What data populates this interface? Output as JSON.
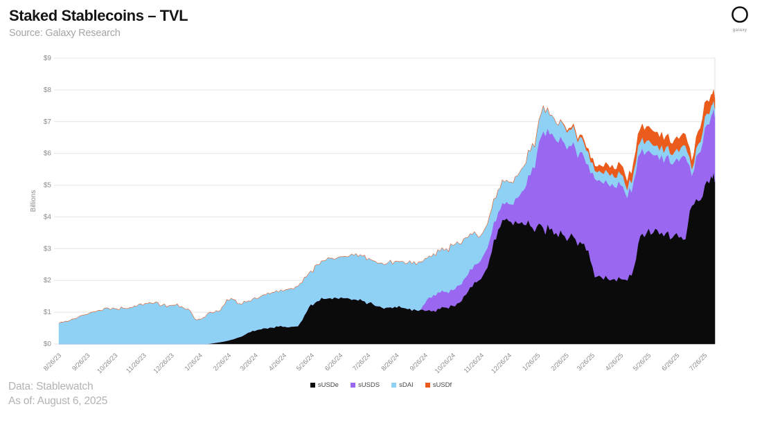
{
  "header": {
    "title": "Staked Stablecoins – TVL",
    "source": "Source: Galaxy Research",
    "logo_text": "galaxy"
  },
  "footer": {
    "data_line": "Data: Stablewatch",
    "as_of_line": "As of: August 6, 2025"
  },
  "chart_data": {
    "type": "area",
    "stacked": true,
    "title": "Staked Stablecoins – TVL",
    "xlabel": "",
    "ylabel": "Billions",
    "ylim": [
      0,
      9
    ],
    "y_tick_prefix": "$",
    "grid": true,
    "legend_position": "bottom",
    "x_unit": "days since 8/26/2023, weekly samples",
    "sample_interval_days": 7,
    "total_days": 711,
    "x_tick_labels": [
      "8/26/23",
      "9/26/23",
      "10/26/23",
      "11/26/23",
      "12/26/23",
      "1/26/24",
      "2/26/24",
      "3/26/24",
      "4/26/24",
      "5/26/24",
      "6/26/24",
      "7/26/24",
      "8/26/24",
      "9/26/24",
      "10/26/24",
      "11/26/24",
      "12/26/24",
      "1/26/25",
      "2/26/25",
      "3/26/25",
      "4/26/25",
      "5/26/25",
      "6/26/25",
      "7/26/25"
    ],
    "x_tick_days": [
      0,
      31,
      61,
      92,
      122,
      153,
      184,
      213,
      244,
      274,
      305,
      335,
      366,
      397,
      427,
      458,
      488,
      519,
      550,
      578,
      609,
      639,
      670,
      700
    ],
    "series": [
      {
        "name": "sUSDe",
        "color": "#0b0b0b",
        "values": [
          0,
          0,
          0,
          0,
          0,
          0,
          0,
          0,
          0,
          0,
          0,
          0,
          0,
          0,
          0,
          0,
          0,
          0,
          0,
          0,
          0,
          0,
          0,
          0,
          0.03,
          0.06,
          0.1,
          0.15,
          0.22,
          0.32,
          0.42,
          0.46,
          0.5,
          0.52,
          0.55,
          0.55,
          0.55,
          0.56,
          0.9,
          1.25,
          1.35,
          1.42,
          1.45,
          1.45,
          1.45,
          1.43,
          1.4,
          1.36,
          1.3,
          1.2,
          1.15,
          1.15,
          1.18,
          1.15,
          1.1,
          1.1,
          1.08,
          1.05,
          1.05,
          1.1,
          1.15,
          1.2,
          1.3,
          1.55,
          1.8,
          2.0,
          2.3,
          2.9,
          3.6,
          3.9,
          3.85,
          3.8,
          3.75,
          3.72,
          3.7,
          3.65,
          3.6,
          3.5,
          3.45,
          3.35,
          3.3,
          3.15,
          2.95,
          2.1,
          2.1,
          2.05,
          2.05,
          2.05,
          2.0,
          2.4,
          3.4,
          3.5,
          3.5,
          3.45,
          3.5,
          3.35,
          3.35,
          3.3,
          4.35,
          4.5,
          5.0,
          5.3,
          5.1
        ]
      },
      {
        "name": "sUSDS",
        "color": "#9a68f0",
        "values": [
          0,
          0,
          0,
          0,
          0,
          0,
          0,
          0,
          0,
          0,
          0,
          0,
          0,
          0,
          0,
          0,
          0,
          0,
          0,
          0,
          0,
          0,
          0,
          0,
          0,
          0,
          0,
          0,
          0,
          0,
          0,
          0,
          0,
          0,
          0,
          0,
          0,
          0,
          0,
          0,
          0,
          0,
          0,
          0,
          0,
          0,
          0,
          0,
          0,
          0,
          0,
          0,
          0,
          0,
          0,
          0,
          0,
          0.35,
          0.5,
          0.52,
          0.5,
          0.5,
          0.55,
          0.55,
          0.55,
          0.55,
          0.6,
          0.6,
          0.55,
          0.5,
          0.55,
          0.8,
          1.1,
          1.6,
          2.3,
          3.05,
          3.0,
          2.9,
          2.95,
          2.9,
          2.85,
          2.9,
          2.7,
          3.1,
          3.0,
          3.0,
          2.9,
          2.95,
          2.6,
          2.75,
          2.6,
          2.55,
          2.45,
          2.35,
          2.4,
          2.3,
          2.4,
          2.6,
          0.95,
          1.5,
          1.8,
          1.9,
          2.05
        ]
      },
      {
        "name": "sDAI",
        "color": "#8ed1f5",
        "values": [
          0.65,
          0.72,
          0.78,
          0.85,
          0.92,
          1.0,
          1.05,
          1.12,
          1.08,
          1.1,
          1.12,
          1.15,
          1.18,
          1.22,
          1.3,
          1.32,
          1.22,
          1.2,
          1.22,
          1.18,
          1.1,
          0.8,
          0.78,
          0.95,
          0.95,
          1.0,
          1.3,
          1.25,
          1.05,
          1.0,
          1.0,
          1.0,
          1.05,
          1.1,
          1.08,
          1.15,
          1.2,
          1.25,
          1.2,
          1.05,
          1.15,
          1.2,
          1.25,
          1.25,
          1.3,
          1.35,
          1.45,
          1.4,
          1.4,
          1.4,
          1.4,
          1.42,
          1.42,
          1.45,
          1.45,
          1.5,
          1.5,
          1.3,
          1.3,
          1.3,
          1.35,
          1.4,
          1.3,
          1.25,
          1.1,
          0.8,
          0.75,
          0.75,
          0.7,
          0.7,
          0.7,
          0.7,
          0.75,
          0.75,
          0.65,
          0.8,
          0.6,
          0.55,
          0.55,
          0.5,
          0.5,
          0.45,
          0.4,
          0.25,
          0.3,
          0.35,
          0.3,
          0.35,
          0.25,
          0.3,
          0.35,
          0.35,
          0.3,
          0.3,
          0.3,
          0.3,
          0.3,
          0.35,
          0.2,
          0.3,
          0.35,
          0.3,
          0.25
        ]
      },
      {
        "name": "sUSDf",
        "color": "#ea5b1c",
        "values": [
          0,
          0,
          0,
          0,
          0,
          0,
          0,
          0,
          0,
          0,
          0,
          0,
          0,
          0,
          0,
          0,
          0,
          0,
          0,
          0,
          0,
          0,
          0,
          0,
          0,
          0,
          0,
          0,
          0,
          0,
          0,
          0,
          0,
          0,
          0,
          0,
          0,
          0,
          0,
          0,
          0,
          0,
          0,
          0,
          0,
          0,
          0,
          0,
          0,
          0,
          0,
          0,
          0,
          0,
          0,
          0,
          0,
          0,
          0,
          0,
          0,
          0,
          0,
          0,
          0,
          0,
          0,
          0,
          0,
          0,
          0,
          0,
          0,
          0,
          0,
          0,
          0,
          0,
          0.02,
          0.05,
          0.05,
          0.08,
          0.1,
          0.15,
          0.2,
          0.25,
          0.25,
          0.3,
          0.25,
          0.3,
          0.4,
          0.45,
          0.45,
          0.4,
          0.35,
          0.35,
          0.4,
          0.35,
          0.25,
          0.4,
          0.45,
          0.35,
          0.3
        ]
      }
    ]
  }
}
